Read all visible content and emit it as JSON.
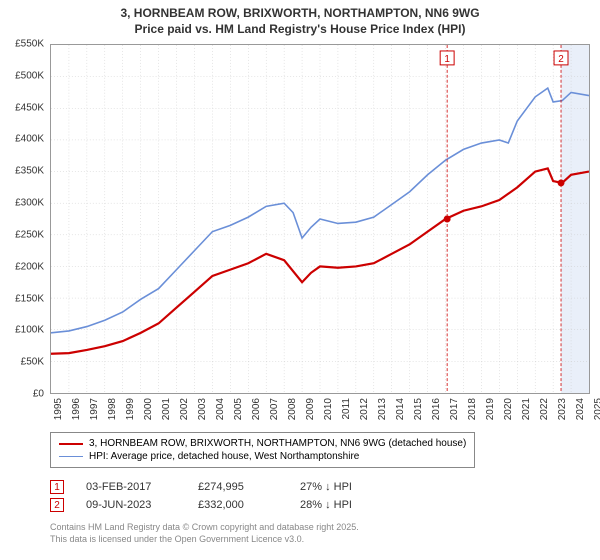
{
  "title_line1": "3, HORNBEAM ROW, BRIXWORTH, NORTHAMPTON, NN6 9WG",
  "title_line2": "Price paid vs. HM Land Registry's House Price Index (HPI)",
  "chart": {
    "type": "line",
    "background_color": "#ffffff",
    "grid_color": "#cccccc",
    "border_color": "#999999",
    "x_axis": {
      "start": 1995,
      "end": 2025,
      "tick_step": 1,
      "label_fontsize": 10
    },
    "y_axis": {
      "min": 0,
      "max": 550000,
      "tick_step": 50000,
      "prefix": "£",
      "suffix": "K",
      "label_fontsize": 10
    },
    "series": [
      {
        "key": "price_paid",
        "label": "3, HORNBEAM ROW, BRIXWORTH, NORTHAMPTON, NN6 9WG (detached house)",
        "color": "#cc0000",
        "line_width": 2.2,
        "data": [
          [
            1995,
            62000
          ],
          [
            1996,
            63000
          ],
          [
            1997,
            68000
          ],
          [
            1998,
            74000
          ],
          [
            1999,
            82000
          ],
          [
            2000,
            95000
          ],
          [
            2001,
            110000
          ],
          [
            2002,
            135000
          ],
          [
            2003,
            160000
          ],
          [
            2004,
            185000
          ],
          [
            2005,
            195000
          ],
          [
            2006,
            205000
          ],
          [
            2007,
            220000
          ],
          [
            2008,
            210000
          ],
          [
            2009,
            175000
          ],
          [
            2009.5,
            190000
          ],
          [
            2010,
            200000
          ],
          [
            2011,
            198000
          ],
          [
            2012,
            200000
          ],
          [
            2013,
            205000
          ],
          [
            2014,
            220000
          ],
          [
            2015,
            235000
          ],
          [
            2016,
            255000
          ],
          [
            2017,
            275000
          ],
          [
            2018,
            288000
          ],
          [
            2019,
            295000
          ],
          [
            2020,
            305000
          ],
          [
            2021,
            325000
          ],
          [
            2022,
            350000
          ],
          [
            2022.7,
            355000
          ],
          [
            2023,
            335000
          ],
          [
            2023.5,
            332000
          ],
          [
            2024,
            345000
          ],
          [
            2025,
            350000
          ]
        ]
      },
      {
        "key": "hpi",
        "label": "HPI: Average price, detached house, West Northamptonshire",
        "color": "#6a8fd8",
        "line_width": 1.6,
        "data": [
          [
            1995,
            95000
          ],
          [
            1996,
            98000
          ],
          [
            1997,
            105000
          ],
          [
            1998,
            115000
          ],
          [
            1999,
            128000
          ],
          [
            2000,
            148000
          ],
          [
            2001,
            165000
          ],
          [
            2002,
            195000
          ],
          [
            2003,
            225000
          ],
          [
            2004,
            255000
          ],
          [
            2005,
            265000
          ],
          [
            2006,
            278000
          ],
          [
            2007,
            295000
          ],
          [
            2008,
            300000
          ],
          [
            2008.5,
            285000
          ],
          [
            2009,
            245000
          ],
          [
            2009.5,
            262000
          ],
          [
            2010,
            275000
          ],
          [
            2011,
            268000
          ],
          [
            2012,
            270000
          ],
          [
            2013,
            278000
          ],
          [
            2014,
            298000
          ],
          [
            2015,
            318000
          ],
          [
            2016,
            345000
          ],
          [
            2017,
            368000
          ],
          [
            2018,
            385000
          ],
          [
            2019,
            395000
          ],
          [
            2020,
            400000
          ],
          [
            2020.5,
            395000
          ],
          [
            2021,
            430000
          ],
          [
            2022,
            468000
          ],
          [
            2022.7,
            482000
          ],
          [
            2023,
            460000
          ],
          [
            2023.5,
            462000
          ],
          [
            2024,
            475000
          ],
          [
            2025,
            470000
          ]
        ]
      }
    ],
    "sale_markers": [
      {
        "n": "1",
        "year": 2017.09,
        "price": 274995,
        "color": "#cc0000"
      },
      {
        "n": "2",
        "year": 2023.44,
        "price": 332000,
        "color": "#cc0000"
      }
    ],
    "shaded_region": {
      "x_start": 2023.44,
      "x_end": 2025,
      "color": "#dbe4f5",
      "opacity": 0.6
    }
  },
  "legend": {
    "border_color": "#888888",
    "fontsize": 10,
    "items": [
      {
        "color": "#cc0000",
        "width": 2.2,
        "label": "3, HORNBEAM ROW, BRIXWORTH, NORTHAMPTON, NN6 9WG (detached house)"
      },
      {
        "color": "#6a8fd8",
        "width": 1.6,
        "label": "HPI: Average price, detached house, West Northamptonshire"
      }
    ]
  },
  "marker_table": {
    "rows": [
      {
        "n": "1",
        "date": "03-FEB-2017",
        "price": "£274,995",
        "pct": "27% ↓ HPI",
        "color": "#cc0000"
      },
      {
        "n": "2",
        "date": "09-JUN-2023",
        "price": "£332,000",
        "pct": "28% ↓ HPI",
        "color": "#cc0000"
      }
    ]
  },
  "footer": {
    "line1": "Contains HM Land Registry data © Crown copyright and database right 2025.",
    "line2": "This data is licensed under the Open Government Licence v3.0."
  }
}
